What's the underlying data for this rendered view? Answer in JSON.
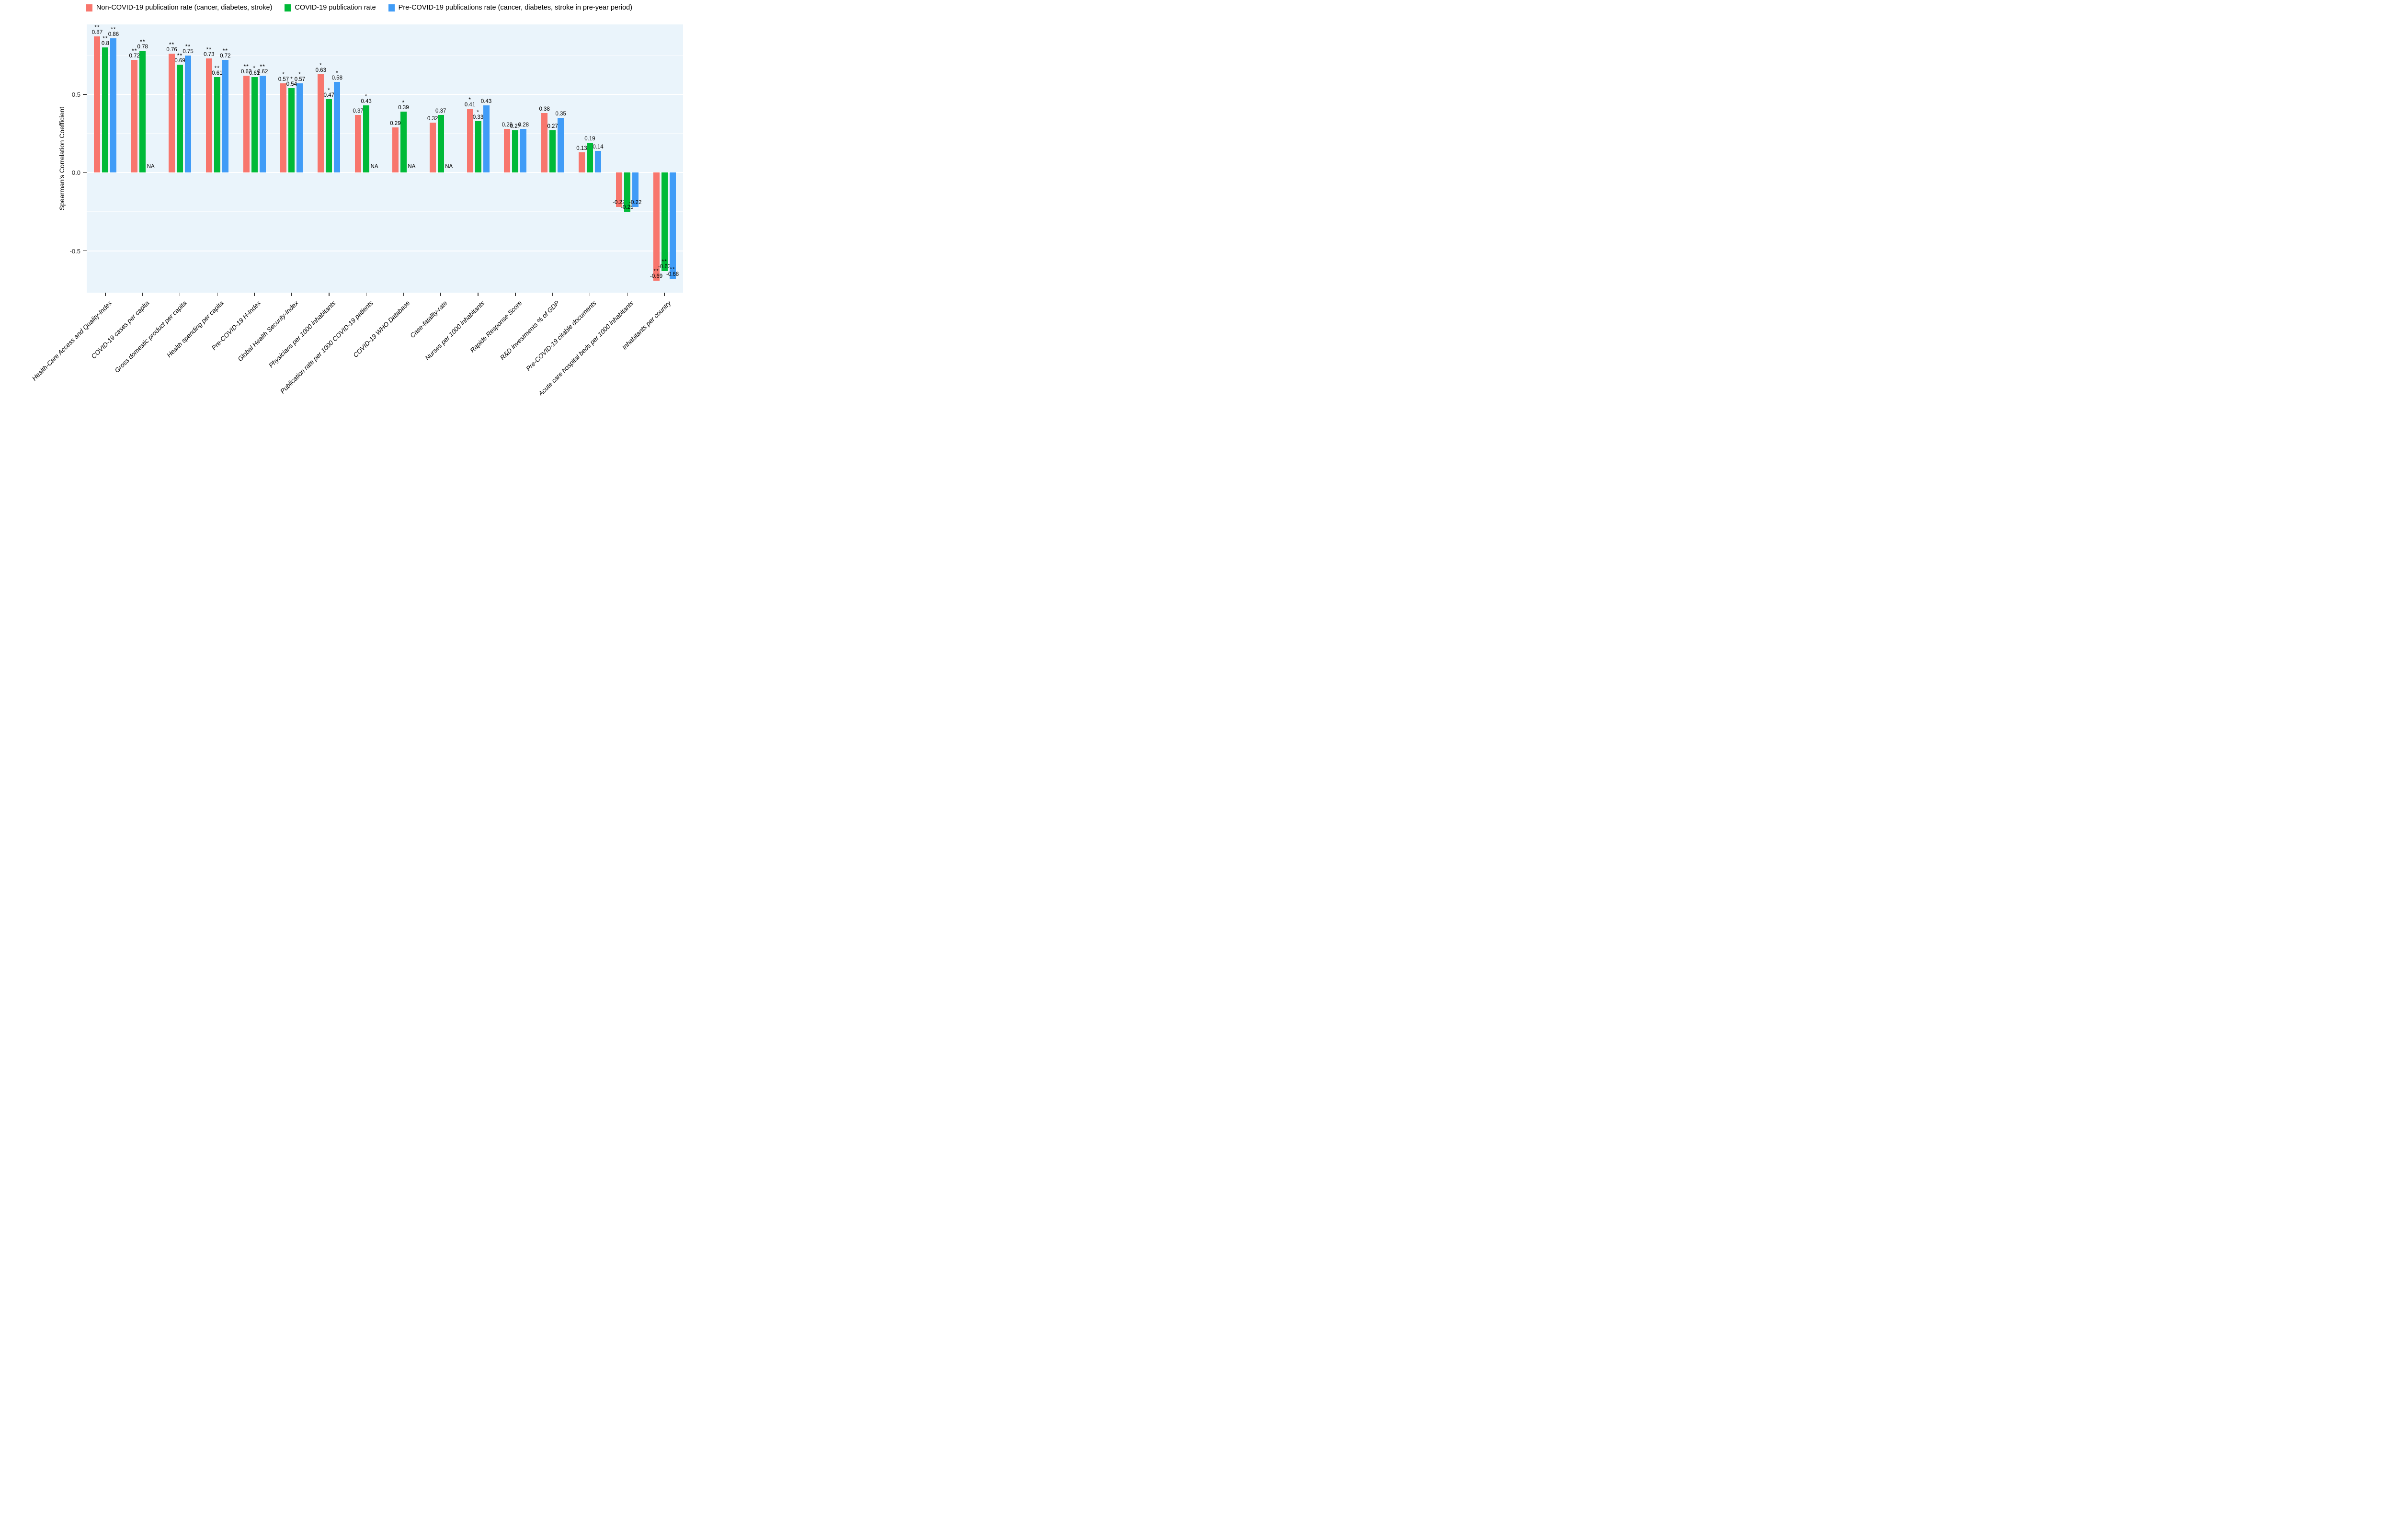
{
  "legend": {
    "items": [
      {
        "label": "Non-COVID-19 publication rate (cancer, diabetes, stroke)",
        "color": "#F8766D"
      },
      {
        "label": "COVID-19 publication rate",
        "color": "#00BA38"
      },
      {
        "label": "Pre-COVID-19 publications rate (cancer, diabetes, stroke in pre-year period)",
        "color": "#409CF7"
      }
    ]
  },
  "chart_data": {
    "type": "bar",
    "title": "",
    "xlabel": "",
    "ylabel": "Spearman's Correlation Coefficient",
    "ylim": [
      -0.768,
      0.948
    ],
    "grid": true,
    "legend_position": "top",
    "panel_background": "#EAF4FB",
    "na_label": "NA",
    "yticks": [
      {
        "label": "0.5",
        "value": 0.5
      },
      {
        "label": "0.0",
        "value": 0.0
      },
      {
        "label": "-0.5",
        "value": -0.5
      }
    ],
    "yticks_minor": [
      0.75,
      0.25,
      -0.25,
      -0.75
    ],
    "categories": [
      "Health-Care Access and Quality-Index",
      "COVID-19 cases per capita",
      "Gross domestic product per capita",
      "Health spending per capita",
      "Pre-COVID-19 H-Index",
      "Global Health Security-Index",
      "Physicians per 1000 inhabitants",
      "Publication rate per 1000 COVID-19 patients",
      "COVID-19 WHO Database",
      "Case-fatality-rate",
      "Nurses per 1000 inhabitants",
      "Rapide Response Score",
      "R&D investments % of GDP",
      "Pre-COVID-19 citable documents",
      "Acute care hospital beds per 1000 inhabitants",
      "Inhabitants per country"
    ],
    "series": [
      {
        "name": "Non-COVID-19 publication rate (cancer, diabetes, stroke)",
        "color": "#F8766D",
        "values": [
          0.87,
          0.72,
          0.76,
          0.73,
          0.62,
          0.57,
          0.63,
          0.37,
          0.29,
          0.32,
          0.41,
          0.28,
          0.38,
          0.13,
          -0.22,
          -0.69
        ],
        "significance": [
          "**",
          "**",
          "**",
          "**",
          "**",
          "*",
          "*",
          "",
          "",
          "",
          "*",
          "",
          "",
          "",
          "",
          "**"
        ]
      },
      {
        "name": "COVID-19 publication rate",
        "color": "#00BA38",
        "values": [
          0.8,
          0.78,
          0.69,
          0.61,
          0.61,
          0.54,
          0.47,
          0.43,
          0.39,
          0.37,
          0.33,
          0.27,
          0.27,
          0.19,
          -0.25,
          -0.63
        ],
        "significance": [
          "**",
          "**",
          "**",
          "**",
          "*",
          "*",
          "*",
          "*",
          "*",
          "",
          "*",
          "",
          "",
          "",
          "",
          "**"
        ]
      },
      {
        "name": "Pre-COVID-19 publications rate (cancer, diabetes, stroke in pre-year period)",
        "color": "#409CF7",
        "values": [
          0.86,
          null,
          0.75,
          0.72,
          0.62,
          0.57,
          0.58,
          null,
          null,
          null,
          0.43,
          0.28,
          0.35,
          0.14,
          -0.22,
          -0.68
        ],
        "significance": [
          "**",
          "",
          "**",
          "**",
          "**",
          "*",
          "*",
          "",
          "",
          "",
          "",
          "",
          "",
          "",
          "",
          "**"
        ]
      }
    ]
  }
}
